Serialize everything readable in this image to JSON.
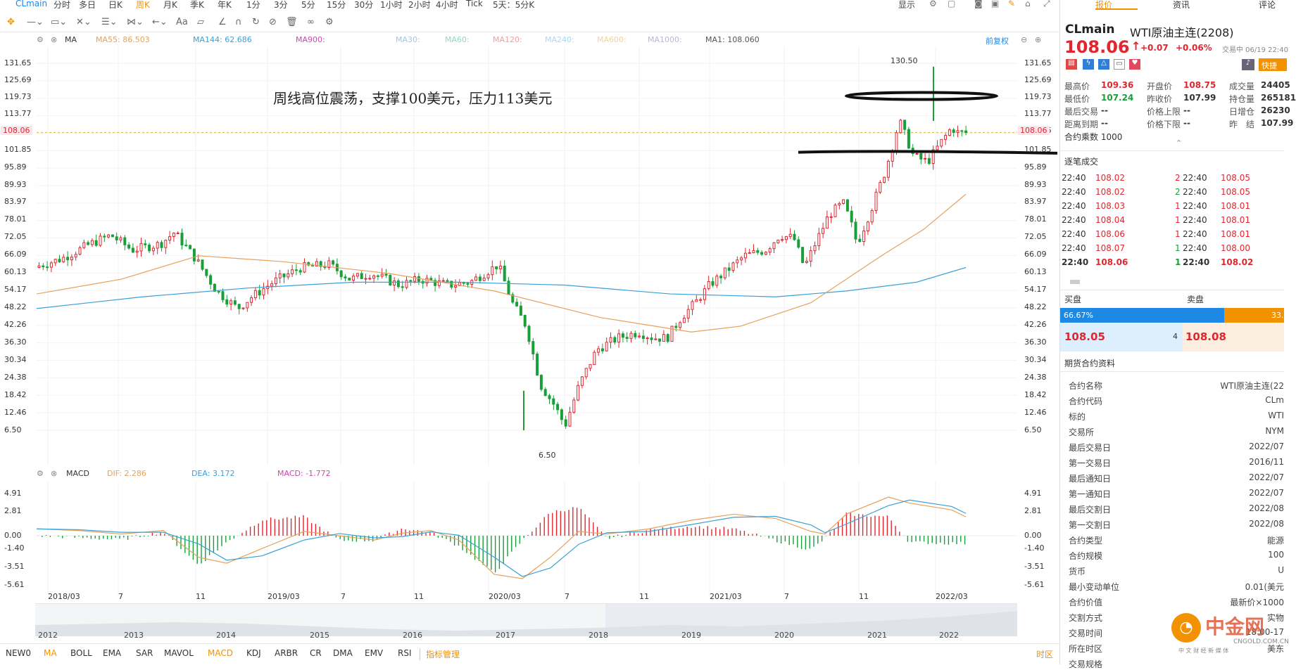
{
  "topbar": {
    "symbol": "CLmain",
    "periods": [
      "分时",
      "多日",
      "日K",
      "周K",
      "月K",
      "季K",
      "年K",
      "1分",
      "3分",
      "5分",
      "15分",
      "30分",
      "1小时",
      "2小时",
      "4小时",
      "Tick",
      "5天：5分K"
    ],
    "display": "显示"
  },
  "ma_legend": {
    "label": "MA",
    "ma55": "MA55: 86.503",
    "ma144": "MA144: 62.686",
    "ma900": "MA900:",
    "ma30": "MA30:",
    "ma60": "MA60:",
    "ma120": "MA120:",
    "ma240": "MA240:",
    "ma600": "MA600:",
    "ma1000": "MA1000:",
    "ma1": "MA1: 108.060",
    "adjust": "前复权"
  },
  "annotation": "周线高位震荡，支撑100美元，压力113美元",
  "price_axis": [
    "131.65",
    "125.69",
    "119.73",
    "113.77",
    "108.06",
    "101.85",
    "95.89",
    "89.93",
    "83.97",
    "78.01",
    "72.05",
    "66.09",
    "60.13",
    "54.17",
    "48.22",
    "42.26",
    "36.30",
    "30.34",
    "24.38",
    "18.42",
    "12.46",
    "6.50"
  ],
  "last_price_label": "108.06",
  "high_label": "130.50",
  "low_label": "6.50",
  "macd_legend": {
    "label": "MACD",
    "dif": "DIF: 2.286",
    "dea": "DEA: 3.172",
    "macd": "MACD: -1.772"
  },
  "macd_axis": [
    "4.91",
    "2.81",
    "0.00",
    "-1.40",
    "-3.51",
    "-5.61"
  ],
  "date_axis": [
    "2018/03",
    "7",
    "11",
    "2019/03",
    "7",
    "11",
    "2020/03",
    "7",
    "11",
    "2021/03",
    "7",
    "11",
    "2022/03"
  ],
  "year_axis": [
    "2012",
    "2013",
    "2014",
    "2015",
    "2016",
    "2017",
    "2018",
    "2019",
    "2020",
    "2021",
    "2022"
  ],
  "bottombar": {
    "indicators": [
      "NEW0",
      "MA",
      "BOLL",
      "EMA",
      "SAR",
      "MAVOL",
      "MACD",
      "KDJ",
      "ARBR",
      "CR",
      "DMA",
      "EMV",
      "RSI"
    ],
    "manage": "指标管理",
    "timezone": "时区"
  },
  "panel": {
    "tabs": [
      "报价",
      "资讯",
      "评论"
    ],
    "symbol": "CLmain",
    "name": "WTI原油主连(2208)",
    "price": "108.06",
    "change": "+0.07",
    "change_pct": "+0.06%",
    "trade_status": "交易中 06/19 22:40",
    "quick": "快捷",
    "stats": [
      {
        "label": "最高价",
        "value": "109.36"
      },
      {
        "label": "开盘价",
        "value": "108.75"
      },
      {
        "label": "成交量",
        "value": "24405"
      },
      {
        "label": "最低价",
        "value": "107.24"
      },
      {
        "label": "昨收价",
        "value": "107.99"
      },
      {
        "label": "持仓量",
        "value": "265181"
      },
      {
        "label": "最后交易",
        "value": "--"
      },
      {
        "label": "价格上限",
        "value": "--"
      },
      {
        "label": "日增仓",
        "value": "26230"
      },
      {
        "label": "距离到期",
        "value": "--"
      },
      {
        "label": "价格下限",
        "value": "--"
      },
      {
        "label": "昨　结",
        "value": "107.99"
      }
    ],
    "multiplier": "合约乘数 1000",
    "ticks_title": "逐笔成交",
    "ticks": [
      {
        "t1": "22:40",
        "p1": "108.02",
        "v": "2",
        "t2": "22:40",
        "p2": "108.05"
      },
      {
        "t1": "22:40",
        "p1": "108.02",
        "v": "2",
        "t2": "22:40",
        "p2": "108.05"
      },
      {
        "t1": "22:40",
        "p1": "108.03",
        "v": "1",
        "t2": "22:40",
        "p2": "108.01"
      },
      {
        "t1": "22:40",
        "p1": "108.04",
        "v": "1",
        "t2": "22:40",
        "p2": "108.01"
      },
      {
        "t1": "22:40",
        "p1": "108.06",
        "v": "1",
        "t2": "22:40",
        "p2": "108.01"
      },
      {
        "t1": "22:40",
        "p1": "108.07",
        "v": "1",
        "t2": "22:40",
        "p2": "108.00"
      },
      {
        "t1": "22:40",
        "p1": "108.06",
        "v": "1",
        "t2": "22:40",
        "p2": "108.02"
      }
    ],
    "buy_label": "买盘",
    "sell_label": "卖盘",
    "buy_pct": "66.67%",
    "sell_pct": "33.",
    "bid": "108.05",
    "bid_vol": "4",
    "ask": "108.08",
    "info_title": "期货合约资料",
    "info": [
      {
        "k": "合约名称",
        "v": "WTI原油主连(22"
      },
      {
        "k": "合约代码",
        "v": "CLm"
      },
      {
        "k": "标的",
        "v": "WTI"
      },
      {
        "k": "交易所",
        "v": "NYM"
      },
      {
        "k": "最后交易日",
        "v": "2022/07"
      },
      {
        "k": "第一交易日",
        "v": "2016/11"
      },
      {
        "k": "最后通知日",
        "v": "2022/07"
      },
      {
        "k": "第一通知日",
        "v": "2022/07"
      },
      {
        "k": "最后交割日",
        "v": "2022/08"
      },
      {
        "k": "第一交割日",
        "v": "2022/08"
      },
      {
        "k": "合约类型",
        "v": "能源"
      },
      {
        "k": "合约规模",
        "v": "100"
      },
      {
        "k": "货币",
        "v": "U"
      },
      {
        "k": "最小变动单位",
        "v": "0.01(美元"
      },
      {
        "k": "合约价值",
        "v": "最新价×1000"
      },
      {
        "k": "交割方式",
        "v": "实物"
      },
      {
        "k": "交易时间",
        "v": "18:00-17"
      },
      {
        "k": "所在时区",
        "v": "美东"
      },
      {
        "k": "交易规格",
        "v": ""
      }
    ],
    "watermark": "中金网",
    "watermark_sub": "中 文 财 经 新 媒 体",
    "watermark_url": "CNGOLD.COM.CN"
  },
  "colors": {
    "up": "#e0262f",
    "down": "#1a9e3a",
    "ma55": "#e6a15a",
    "ma144": "#3aa0d8",
    "accent": "#1e88e5",
    "orange": "#f39200"
  }
}
